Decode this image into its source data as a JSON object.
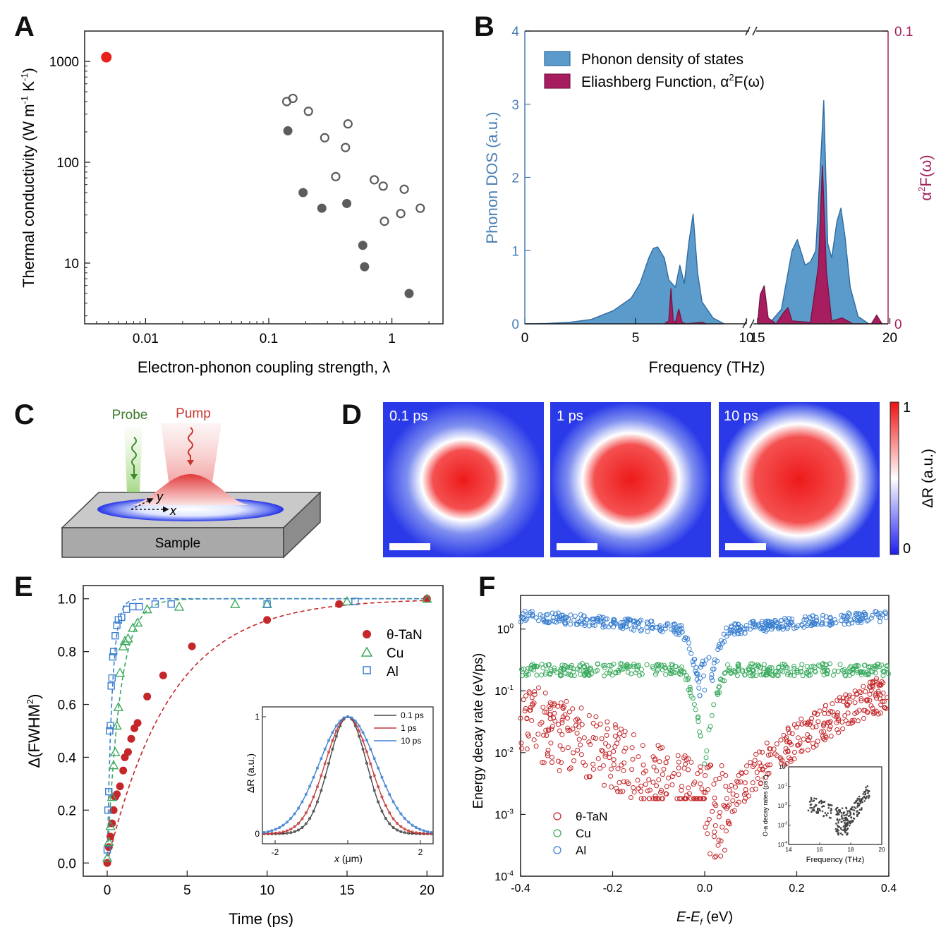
{
  "panels": {
    "A": {
      "label": "A"
    },
    "B": {
      "label": "B"
    },
    "C": {
      "label": "C"
    },
    "D": {
      "label": "D"
    },
    "E": {
      "label": "E"
    },
    "F": {
      "label": "F"
    }
  },
  "colors": {
    "red": "#e8211c",
    "gray": "#5c5c5c",
    "blue_fill": "#5b9bcc",
    "blue_line": "#2f6aa0",
    "magenta": "#a61e5f",
    "dos_axis": "#4a7fb5",
    "a2f_axis": "#a3225e",
    "tan": "#c4262a",
    "cu": "#3aaa5e",
    "al": "#3a7fd0"
  },
  "chart_data": [
    {
      "id": "A",
      "type": "scatter",
      "xlabel": "Electron-phonon coupling strength, λ",
      "ylabel_main": "Thermal conductivity (W m",
      "ylabel_sup1": "-1",
      "ylabel_mid": " K",
      "ylabel_sup2": "-1",
      "ylabel_end": ")",
      "xscale": "log",
      "yscale": "log",
      "xlim": [
        0.0032,
        2.6
      ],
      "ylim": [
        2.5,
        2000
      ],
      "xticks": [
        0.01,
        0.1,
        1
      ],
      "xtick_labels": [
        "0.01",
        "0.1",
        "1"
      ],
      "yticks": [
        10,
        100,
        1000
      ],
      "ytick_labels": [
        "10",
        "100",
        "1000"
      ],
      "series": [
        {
          "style": "red-filled",
          "points": [
            [
              0.0048,
              1100
            ]
          ]
        },
        {
          "style": "gray-filled",
          "points": [
            [
              0.143,
              205
            ],
            [
              0.19,
              50
            ],
            [
              0.27,
              35
            ],
            [
              0.43,
              39
            ],
            [
              0.58,
              15
            ],
            [
              0.6,
              9.2
            ],
            [
              1.38,
              5
            ]
          ]
        },
        {
          "style": "gray-open",
          "points": [
            [
              0.14,
              400
            ],
            [
              0.157,
              430
            ],
            [
              0.21,
              320
            ],
            [
              0.285,
              175
            ],
            [
              0.35,
              72
            ],
            [
              0.42,
              140
            ],
            [
              0.44,
              240
            ],
            [
              0.72,
              67
            ],
            [
              0.85,
              58
            ],
            [
              0.87,
              26
            ],
            [
              1.18,
              31
            ],
            [
              1.26,
              54
            ],
            [
              1.7,
              35
            ]
          ]
        }
      ]
    },
    {
      "id": "B",
      "type": "area",
      "xlabel": "Frequency (THz)",
      "ylabel_left": "Phonon DOS (a.u.)",
      "ylabel_right_a": "α",
      "ylabel_right_sup": "2",
      "ylabel_right_b": "F(ω)",
      "xticks_left": [
        "0",
        "5",
        "10"
      ],
      "xticks_right": [
        "15",
        "20"
      ],
      "yticks_left": [
        "0",
        "1",
        "2",
        "3",
        "4"
      ],
      "yticks_right": [
        "0",
        "0.1"
      ],
      "ylim_left": [
        0,
        4
      ],
      "ylim_right": [
        0,
        0.1
      ],
      "legend": [
        "Phonon density of states",
        "Eliashberg Function, α",
        "2",
        "F(ω)"
      ],
      "dos_low": [
        [
          0,
          0
        ],
        [
          1,
          0.005
        ],
        [
          2,
          0.02
        ],
        [
          3,
          0.06
        ],
        [
          4,
          0.18
        ],
        [
          4.8,
          0.35
        ],
        [
          5.2,
          0.55
        ],
        [
          5.6,
          0.9
        ],
        [
          5.8,
          1.03
        ],
        [
          6.0,
          1.05
        ],
        [
          6.3,
          0.9
        ],
        [
          6.5,
          0.6
        ],
        [
          6.8,
          0.5
        ],
        [
          7.0,
          0.8
        ],
        [
          7.2,
          0.55
        ],
        [
          7.4,
          1.1
        ],
        [
          7.6,
          1.5
        ],
        [
          7.8,
          0.7
        ],
        [
          8.0,
          0.3
        ],
        [
          8.5,
          0.08
        ],
        [
          9.0,
          0.0
        ]
      ],
      "dos_high": [
        [
          15.0,
          0
        ],
        [
          15.5,
          0.03
        ],
        [
          15.9,
          0.2
        ],
        [
          16.1,
          0.6
        ],
        [
          16.3,
          1.0
        ],
        [
          16.5,
          1.15
        ],
        [
          16.8,
          0.8
        ],
        [
          17.0,
          0.85
        ],
        [
          17.2,
          1.0
        ],
        [
          17.35,
          2.0
        ],
        [
          17.5,
          3.05
        ],
        [
          17.65,
          1.1
        ],
        [
          17.8,
          0.9
        ],
        [
          18.0,
          1.4
        ],
        [
          18.15,
          1.58
        ],
        [
          18.3,
          1.2
        ],
        [
          18.5,
          0.5
        ],
        [
          18.8,
          0.1
        ],
        [
          19.2,
          0
        ]
      ],
      "a2f_low": [
        [
          6.3,
          0
        ],
        [
          6.5,
          0.001
        ],
        [
          6.6,
          0.012
        ],
        [
          6.7,
          0.001
        ],
        [
          6.8,
          0.0005
        ],
        [
          6.95,
          0.005
        ],
        [
          7.1,
          0.0005
        ],
        [
          7.3,
          0
        ],
        [
          8.0,
          0.0005
        ],
        [
          8.2,
          0
        ]
      ],
      "a2f_high": [
        [
          15.0,
          0
        ],
        [
          15.1,
          0.01
        ],
        [
          15.25,
          0.013
        ],
        [
          15.4,
          0.002
        ],
        [
          15.7,
          0
        ],
        [
          16.0,
          0.004
        ],
        [
          16.15,
          0.0055
        ],
        [
          16.3,
          0.001
        ],
        [
          17.0,
          0.0005
        ],
        [
          17.3,
          0.02
        ],
        [
          17.45,
          0.054
        ],
        [
          17.6,
          0.018
        ],
        [
          17.8,
          0.001
        ],
        [
          18.2,
          0.002
        ],
        [
          18.6,
          0
        ],
        [
          19.3,
          0
        ],
        [
          19.5,
          0.003
        ],
        [
          19.7,
          0
        ]
      ]
    },
    {
      "id": "E",
      "type": "scatter",
      "xlabel": "Time (ps)",
      "ylabel_a": "Δ(FWHM",
      "ylabel_sup": "2",
      "ylabel_b": ")",
      "xlim": [
        -1.5,
        21
      ],
      "ylim": [
        -0.05,
        1.05
      ],
      "xticks": [
        "0",
        "5",
        "10",
        "15",
        "20"
      ],
      "yticks": [
        "0.0",
        "0.2",
        "0.4",
        "0.6",
        "0.8",
        "1.0"
      ],
      "series": [
        {
          "name": "θ-TaN",
          "marker": "circle-filled",
          "tau": 4.0
        },
        {
          "name": "Cu",
          "marker": "triangle-open",
          "tau": 0.8
        },
        {
          "name": "Al",
          "marker": "square-open",
          "tau": 0.3
        }
      ],
      "tan_points": [
        [
          0,
          0
        ],
        [
          0.1,
          0.06
        ],
        [
          0.2,
          0.1
        ],
        [
          0.3,
          0.15
        ],
        [
          0.4,
          0.2
        ],
        [
          0.5,
          0.25
        ],
        [
          0.6,
          0.26
        ],
        [
          0.8,
          0.29
        ],
        [
          1.0,
          0.35
        ],
        [
          1.1,
          0.4
        ],
        [
          1.3,
          0.42
        ],
        [
          1.5,
          0.47
        ],
        [
          1.7,
          0.51
        ],
        [
          1.9,
          0.53
        ],
        [
          2.5,
          0.63
        ],
        [
          3.5,
          0.71
        ],
        [
          5.3,
          0.82
        ],
        [
          10,
          0.92
        ],
        [
          14.5,
          0.98
        ],
        [
          20,
          1.0
        ]
      ],
      "cu_points": [
        [
          0,
          0.02
        ],
        [
          0.1,
          0.08
        ],
        [
          0.2,
          0.14
        ],
        [
          0.3,
          0.25
        ],
        [
          0.4,
          0.37
        ],
        [
          0.5,
          0.42
        ],
        [
          0.6,
          0.52
        ],
        [
          0.7,
          0.59
        ],
        [
          0.8,
          0.72
        ],
        [
          1.0,
          0.82
        ],
        [
          1.1,
          0.84
        ],
        [
          1.3,
          0.85
        ],
        [
          1.6,
          0.89
        ],
        [
          1.9,
          0.91
        ],
        [
          2.5,
          0.96
        ],
        [
          4.5,
          0.97
        ],
        [
          8,
          0.98
        ],
        [
          10,
          0.98
        ],
        [
          15,
          0.99
        ],
        [
          20,
          1.0
        ]
      ],
      "al_points": [
        [
          0,
          0.05
        ],
        [
          0.05,
          0.2
        ],
        [
          0.1,
          0.27
        ],
        [
          0.15,
          0.5
        ],
        [
          0.2,
          0.52
        ],
        [
          0.25,
          0.67
        ],
        [
          0.3,
          0.7
        ],
        [
          0.35,
          0.78
        ],
        [
          0.4,
          0.8
        ],
        [
          0.5,
          0.86
        ],
        [
          0.6,
          0.9
        ],
        [
          0.7,
          0.92
        ],
        [
          0.9,
          0.93
        ],
        [
          1.2,
          0.96
        ],
        [
          1.6,
          0.97
        ],
        [
          2.0,
          0.97
        ],
        [
          3.0,
          0.98
        ],
        [
          4.0,
          0.98
        ],
        [
          10,
          0.98
        ],
        [
          15.5,
          0.99
        ]
      ],
      "inset": {
        "xlabel_a": "x",
        "xlabel_b": " (μm)",
        "ylabel": "ΔR (a.u.)",
        "xticks": [
          "-2",
          "0",
          "2"
        ],
        "yticks": [
          "0",
          "1"
        ],
        "series": [
          {
            "name": "0.1 ps",
            "sigma": 0.52
          },
          {
            "name": "1 ps",
            "sigma": 0.62
          },
          {
            "name": "10 ps",
            "sigma": 0.78
          }
        ]
      }
    },
    {
      "id": "F",
      "type": "scatter",
      "xlabel_a": "E",
      "xlabel_b": "-",
      "xlabel_c": "E",
      "xlabel_sub": "f",
      "xlabel_d": " (eV)",
      "ylabel": "Energy decay rate (eV/ps)",
      "xlim": [
        -0.4,
        0.4
      ],
      "ylim": [
        0.0001,
        3.5
      ],
      "yscale": "log",
      "xticks": [
        "-0.4",
        "-0.2",
        "0.0",
        "0.2",
        "0.4"
      ],
      "yticks_base": [
        "10",
        "10",
        "10",
        "10",
        "10"
      ],
      "yticks_exp": [
        "-4",
        "-3",
        "-2",
        "-1",
        "0"
      ],
      "series": [
        {
          "name": "θ-TaN",
          "marker": "circle-open",
          "level_low": 0.03,
          "level_high": 0.07
        },
        {
          "name": "Cu",
          "marker": "circle-open",
          "level_low": 0.2,
          "level_high": 0.25
        },
        {
          "name": "Al",
          "marker": "circle-open",
          "level_low": 1.5,
          "level_high": 1.6
        }
      ],
      "inset": {
        "xlabel": "Frequency (THz)",
        "ylabel": "O-a decay rates (ps",
        "ylabel_sup": "-1",
        "ylabel_end": ")",
        "xticks": [
          "14",
          "16",
          "18",
          "20"
        ],
        "yticks_base": [
          "10",
          "10",
          "10",
          "10"
        ],
        "yticks_exp": [
          "-4",
          "-3",
          "-2",
          "-1"
        ],
        "ytick_top_base": "10",
        "ytick_top_exp": "0"
      }
    }
  ],
  "panel_C": {
    "probe": "Probe",
    "pump": "Pump",
    "sample": "Sample",
    "axis_x": "x",
    "axis_y": "y"
  },
  "panel_D": {
    "frames": [
      "0.1 ps",
      "1 ps",
      "10 ps"
    ],
    "colorbar_max": "1",
    "colorbar_min": "0",
    "colorbar_label": "ΔR (a.u.)"
  }
}
